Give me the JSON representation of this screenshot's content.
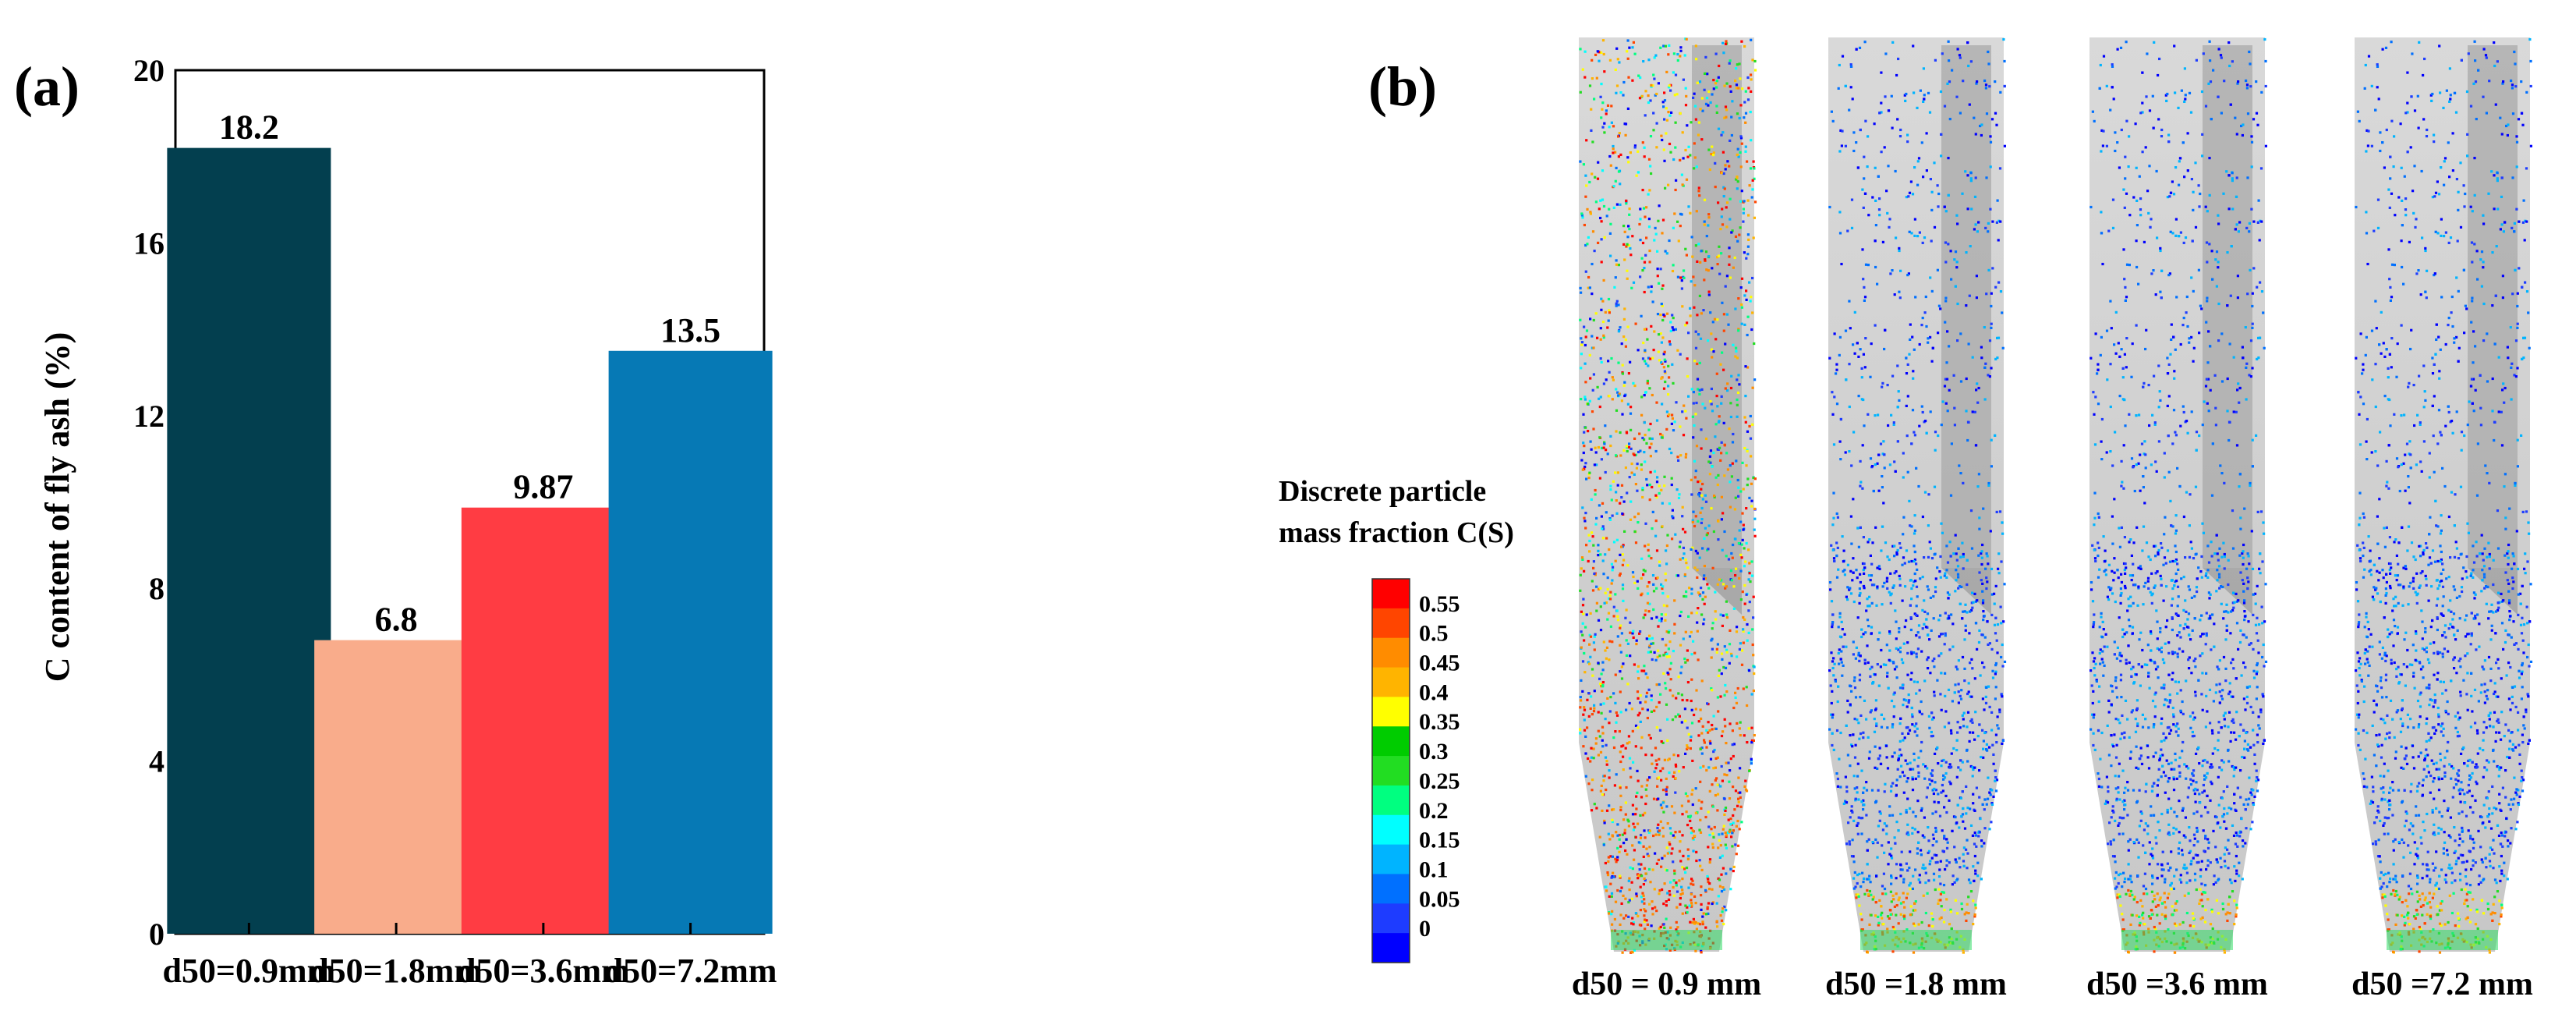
{
  "panel_a": {
    "label": "(a)"
  },
  "panel_b": {
    "label": "(b)",
    "colorbar_title_line1": "Discrete particle",
    "colorbar_title_line2": "mass fraction C(S)",
    "colorbar_ticks": [
      "0.55",
      "0.5",
      "0.45",
      "0.4",
      "0.35",
      "0.3",
      "0.25",
      "0.2",
      "0.15",
      "0.1",
      "0.05",
      "0"
    ],
    "colorbar_colors": [
      "#ff0000",
      "#ff4500",
      "#ff8c00",
      "#ffb400",
      "#ffff00",
      "#00cc00",
      "#22dd22",
      "#00ff80",
      "#00ffff",
      "#00b4ff",
      "#0070ff",
      "#1e3cff",
      "#0000ff"
    ],
    "reactor_labels": [
      "d50 = 0.9 mm",
      "d50 =1.8 mm",
      "d50 =3.6 mm",
      "d50 =7.2 mm"
    ],
    "reactor_densities": [
      1.0,
      0.45,
      0.4,
      0.38
    ]
  },
  "chart_data": {
    "type": "bar",
    "title": "",
    "xlabel": "",
    "ylabel": "C content of fly ash (%)",
    "categories": [
      "d50=0.9mm",
      "d50=1.8mm",
      "d50=3.6mm",
      "d50=7.2mm"
    ],
    "values": [
      18.2,
      6.8,
      9.87,
      13.5
    ],
    "value_labels": [
      "18.2",
      "6.8",
      "9.87",
      "13.5"
    ],
    "colors": [
      "#033f4f",
      "#f9ac8b",
      "#ff3c43",
      "#0679b5"
    ],
    "ylim": [
      0,
      20
    ],
    "yticks": [
      0,
      4,
      8,
      12,
      16,
      20
    ],
    "grid": false
  }
}
